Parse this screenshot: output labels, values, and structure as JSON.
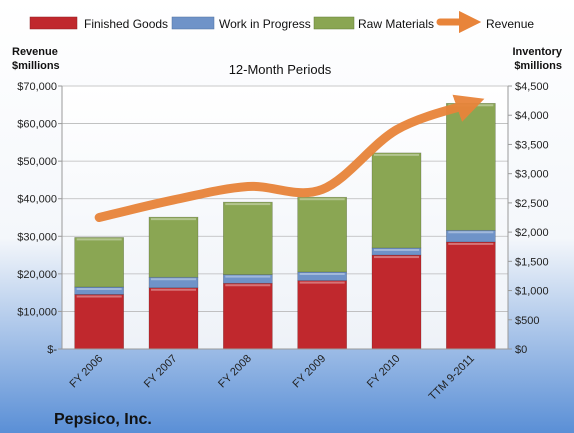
{
  "chart_data": {
    "type": "bar",
    "subtitle": "12-Month Periods",
    "company": "Pepsico, Inc.",
    "categories": [
      "FY 2006",
      "FY 2007",
      "FY 2008",
      "FY 2009",
      "FY 2010",
      "TTM 9-2011"
    ],
    "left_axis": {
      "label_line1": "Revenue",
      "label_line2": "$millions",
      "ticks": [
        "$-",
        "$10,000",
        "$20,000",
        "$30,000",
        "$40,000",
        "$50,000",
        "$60,000",
        "$70,000"
      ],
      "ylim": [
        0,
        70000
      ]
    },
    "right_axis": {
      "label_line1": "Inventory",
      "label_line2": "$millions",
      "ticks": [
        "$0",
        "$500",
        "$1,000",
        "$1,500",
        "$2,000",
        "$2,500",
        "$3,000",
        "$3,500",
        "$4,000",
        "$4,500"
      ],
      "ylim": [
        0,
        4500
      ]
    },
    "series": [
      {
        "name": "Finished Goods",
        "axis": "left",
        "kind": "stacked-bar",
        "color": "#c0282d",
        "values": [
          14500,
          16300,
          17500,
          18200,
          25000,
          28500
        ]
      },
      {
        "name": "Work in Progress",
        "axis": "left",
        "kind": "stacked-bar",
        "color": "#6f93c8",
        "values": [
          2000,
          2800,
          2300,
          2300,
          1900,
          3100
        ]
      },
      {
        "name": "Raw Materials",
        "axis": "left",
        "kind": "stacked-bar",
        "color": "#8aa653",
        "values": [
          13200,
          16000,
          19300,
          19900,
          25300,
          33800
        ]
      },
      {
        "name": "Revenue",
        "axis": "right",
        "kind": "line",
        "color": "#e8843a",
        "values": [
          2250,
          2550,
          2780,
          2730,
          3750,
          4200
        ]
      }
    ],
    "legend_position": "top",
    "grid": true
  }
}
